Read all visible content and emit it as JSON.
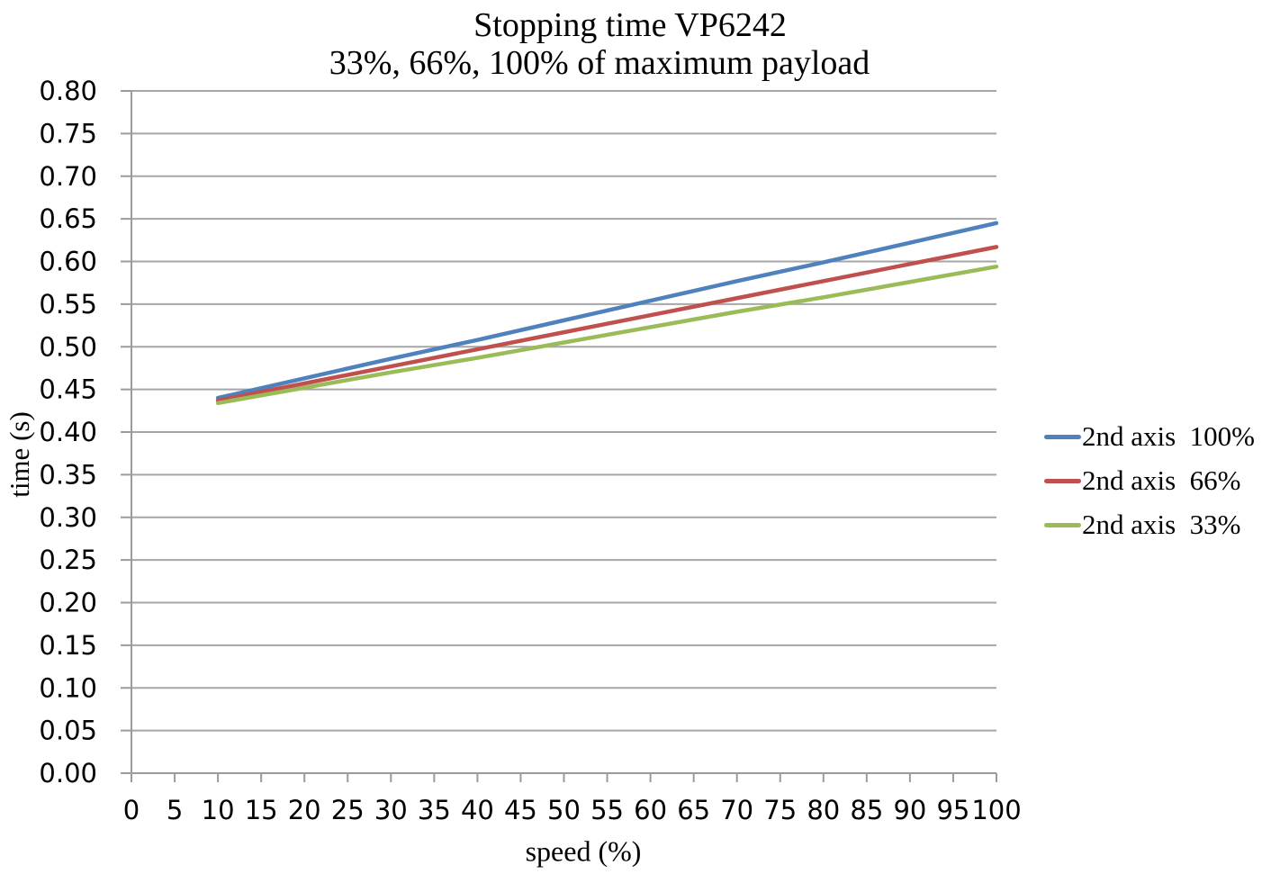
{
  "chart_data": {
    "type": "line",
    "title": "Stopping time VP6242",
    "subtitle": "33%, 66%, 100% of maximum payload",
    "xlabel": "speed (%)",
    "ylabel": "time (s)",
    "xlim": [
      0,
      100
    ],
    "ylim": [
      0.0,
      0.8
    ],
    "x_ticks": [
      0,
      5,
      10,
      15,
      20,
      25,
      30,
      35,
      40,
      45,
      50,
      55,
      60,
      65,
      70,
      75,
      80,
      85,
      90,
      95,
      100
    ],
    "y_ticks": [
      "0.00",
      "0.05",
      "0.10",
      "0.15",
      "0.20",
      "0.25",
      "0.30",
      "0.35",
      "0.40",
      "0.45",
      "0.50",
      "0.55",
      "0.60",
      "0.65",
      "0.70",
      "0.75",
      "0.80"
    ],
    "grid": "horizontal",
    "legend_position": "right",
    "gridline_color": "#A6A6A6",
    "axis_color": "#9B9B9B",
    "x": [
      10,
      20,
      30,
      40,
      50,
      60,
      70,
      80,
      90,
      100
    ],
    "series": [
      {
        "name": "2nd axis  100%",
        "color": "#4F81BD",
        "values": [
          0.44,
          0.463,
          0.486,
          0.508,
          0.531,
          0.554,
          0.577,
          0.599,
          0.622,
          0.645
        ]
      },
      {
        "name": "2nd axis  66%",
        "color": "#C0504D",
        "values": [
          0.437,
          0.457,
          0.477,
          0.497,
          0.517,
          0.537,
          0.557,
          0.577,
          0.597,
          0.617
        ]
      },
      {
        "name": "2nd axis  33%",
        "color": "#9BBB59",
        "values": [
          0.434,
          0.452,
          0.47,
          0.487,
          0.505,
          0.523,
          0.541,
          0.558,
          0.576,
          0.594
        ]
      }
    ]
  }
}
